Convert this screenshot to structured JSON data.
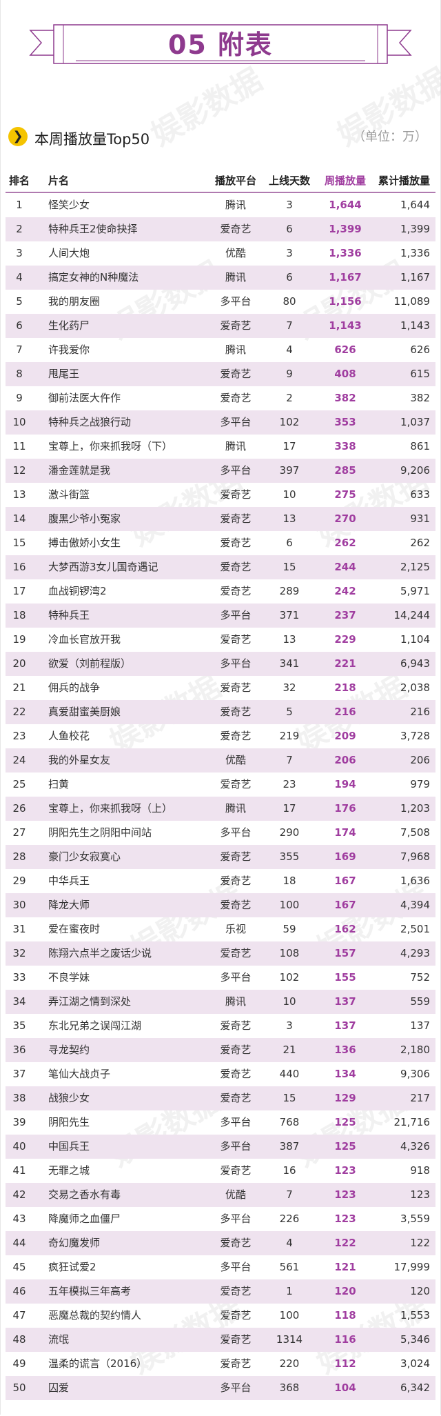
{
  "banner": {
    "title": "05 附表"
  },
  "section": {
    "title": "本周播放量Top50",
    "unit": "（单位：万）",
    "bullet_icon": "chevron-right-icon"
  },
  "watermark": {
    "text": "娱影数据"
  },
  "table": {
    "headers": {
      "rank": "排名",
      "name": "片名",
      "platform": "播放平台",
      "days": "上线天数",
      "weekly": "周播放量",
      "total": "累计播放量"
    },
    "rows": [
      {
        "rank": "1",
        "name": "怪笑少女",
        "platform": "腾讯",
        "days": "3",
        "weekly": "1,644",
        "total": "1,644"
      },
      {
        "rank": "2",
        "name": "特种兵王2使命抉择",
        "platform": "爱奇艺",
        "days": "6",
        "weekly": "1,399",
        "total": "1,399"
      },
      {
        "rank": "3",
        "name": "人间大炮",
        "platform": "优酷",
        "days": "3",
        "weekly": "1,336",
        "total": "1,336"
      },
      {
        "rank": "4",
        "name": "搞定女神的N种魔法",
        "platform": "腾讯",
        "days": "6",
        "weekly": "1,167",
        "total": "1,167"
      },
      {
        "rank": "5",
        "name": "我的朋友圈",
        "platform": "多平台",
        "days": "80",
        "weekly": "1,156",
        "total": "11,089"
      },
      {
        "rank": "6",
        "name": "生化药尸",
        "platform": "爱奇艺",
        "days": "7",
        "weekly": "1,143",
        "total": "1,143"
      },
      {
        "rank": "7",
        "name": "许我爱你",
        "platform": "腾讯",
        "days": "4",
        "weekly": "626",
        "total": "626"
      },
      {
        "rank": "8",
        "name": "甩尾王",
        "platform": "爱奇艺",
        "days": "9",
        "weekly": "408",
        "total": "615"
      },
      {
        "rank": "9",
        "name": "御前法医大仵作",
        "platform": "爱奇艺",
        "days": "2",
        "weekly": "382",
        "total": "382"
      },
      {
        "rank": "10",
        "name": "特种兵之战狼行动",
        "platform": "多平台",
        "days": "102",
        "weekly": "353",
        "total": "1,037"
      },
      {
        "rank": "11",
        "name": "宝尊上，你来抓我呀（下）",
        "platform": "腾讯",
        "days": "17",
        "weekly": "338",
        "total": "861"
      },
      {
        "rank": "12",
        "name": "潘金莲就是我",
        "platform": "多平台",
        "days": "397",
        "weekly": "285",
        "total": "9,206"
      },
      {
        "rank": "13",
        "name": "激斗街篮",
        "platform": "爱奇艺",
        "days": "10",
        "weekly": "275",
        "total": "633"
      },
      {
        "rank": "14",
        "name": "腹黑少爷小冤家",
        "platform": "爱奇艺",
        "days": "13",
        "weekly": "270",
        "total": "931"
      },
      {
        "rank": "15",
        "name": "搏击傲娇小女生",
        "platform": "爱奇艺",
        "days": "6",
        "weekly": "262",
        "total": "262"
      },
      {
        "rank": "16",
        "name": "大梦西游3女儿国奇遇记",
        "platform": "爱奇艺",
        "days": "15",
        "weekly": "244",
        "total": "2,125"
      },
      {
        "rank": "17",
        "name": "血战铜锣湾2",
        "platform": "爱奇艺",
        "days": "289",
        "weekly": "242",
        "total": "5,971"
      },
      {
        "rank": "18",
        "name": "特种兵王",
        "platform": "多平台",
        "days": "371",
        "weekly": "237",
        "total": "14,244"
      },
      {
        "rank": "19",
        "name": "冷血长官放开我",
        "platform": "爱奇艺",
        "days": "13",
        "weekly": "229",
        "total": "1,104"
      },
      {
        "rank": "20",
        "name": "欲爱（刘前程版）",
        "platform": "多平台",
        "days": "341",
        "weekly": "221",
        "total": "6,943"
      },
      {
        "rank": "21",
        "name": "佣兵的战争",
        "platform": "爱奇艺",
        "days": "32",
        "weekly": "218",
        "total": "2,038"
      },
      {
        "rank": "22",
        "name": "真爱甜蜜美厨娘",
        "platform": "爱奇艺",
        "days": "5",
        "weekly": "216",
        "total": "216"
      },
      {
        "rank": "23",
        "name": "人鱼校花",
        "platform": "爱奇艺",
        "days": "219",
        "weekly": "209",
        "total": "3,728"
      },
      {
        "rank": "24",
        "name": "我的外星女友",
        "platform": "优酷",
        "days": "7",
        "weekly": "206",
        "total": "206"
      },
      {
        "rank": "25",
        "name": "扫黄",
        "platform": "爱奇艺",
        "days": "23",
        "weekly": "194",
        "total": "979"
      },
      {
        "rank": "26",
        "name": "宝尊上，你来抓我呀（上）",
        "platform": "腾讯",
        "days": "17",
        "weekly": "176",
        "total": "1,203"
      },
      {
        "rank": "27",
        "name": "阴阳先生之阴阳中间站",
        "platform": "多平台",
        "days": "290",
        "weekly": "174",
        "total": "7,508"
      },
      {
        "rank": "28",
        "name": "豪门少女寂寞心",
        "platform": "爱奇艺",
        "days": "355",
        "weekly": "169",
        "total": "7,968"
      },
      {
        "rank": "29",
        "name": "中华兵王",
        "platform": "爱奇艺",
        "days": "18",
        "weekly": "167",
        "total": "1,636"
      },
      {
        "rank": "30",
        "name": "降龙大师",
        "platform": "爱奇艺",
        "days": "100",
        "weekly": "167",
        "total": "4,394"
      },
      {
        "rank": "31",
        "name": "爱在蜜夜时",
        "platform": "乐视",
        "days": "59",
        "weekly": "162",
        "total": "2,501"
      },
      {
        "rank": "32",
        "name": "陈翔六点半之废话少说",
        "platform": "爱奇艺",
        "days": "108",
        "weekly": "157",
        "total": "4,293"
      },
      {
        "rank": "33",
        "name": "不良学妹",
        "platform": "多平台",
        "days": "102",
        "weekly": "155",
        "total": "752"
      },
      {
        "rank": "34",
        "name": "弄江湖之情到深处",
        "platform": "腾讯",
        "days": "10",
        "weekly": "137",
        "total": "559"
      },
      {
        "rank": "35",
        "name": "东北兄弟之误闯江湖",
        "platform": "爱奇艺",
        "days": "3",
        "weekly": "137",
        "total": "137"
      },
      {
        "rank": "36",
        "name": "寻龙契约",
        "platform": "爱奇艺",
        "days": "21",
        "weekly": "136",
        "total": "2,180"
      },
      {
        "rank": "37",
        "name": "笔仙大战贞子",
        "platform": "爱奇艺",
        "days": "440",
        "weekly": "134",
        "total": "9,306"
      },
      {
        "rank": "38",
        "name": "战狼少女",
        "platform": "爱奇艺",
        "days": "15",
        "weekly": "129",
        "total": "217"
      },
      {
        "rank": "39",
        "name": "阴阳先生",
        "platform": "多平台",
        "days": "768",
        "weekly": "125",
        "total": "21,716"
      },
      {
        "rank": "40",
        "name": "中国兵王",
        "platform": "多平台",
        "days": "387",
        "weekly": "125",
        "total": "4,326"
      },
      {
        "rank": "41",
        "name": "无罪之城",
        "platform": "爱奇艺",
        "days": "16",
        "weekly": "123",
        "total": "918"
      },
      {
        "rank": "42",
        "name": "交易之香水有毒",
        "platform": "优酷",
        "days": "7",
        "weekly": "123",
        "total": "123"
      },
      {
        "rank": "43",
        "name": "降魔师之血僵尸",
        "platform": "多平台",
        "days": "226",
        "weekly": "123",
        "total": "3,559"
      },
      {
        "rank": "44",
        "name": "奇幻魔发师",
        "platform": "爱奇艺",
        "days": "4",
        "weekly": "122",
        "total": "122"
      },
      {
        "rank": "45",
        "name": "疯狂试爱2",
        "platform": "多平台",
        "days": "561",
        "weekly": "121",
        "total": "17,999"
      },
      {
        "rank": "46",
        "name": "五年模拟三年高考",
        "platform": "爱奇艺",
        "days": "1",
        "weekly": "120",
        "total": "120"
      },
      {
        "rank": "47",
        "name": "恶魔总裁的契约情人",
        "platform": "爱奇艺",
        "days": "100",
        "weekly": "118",
        "total": "1,553"
      },
      {
        "rank": "48",
        "name": "流氓",
        "platform": "爱奇艺",
        "days": "1314",
        "weekly": "116",
        "total": "5,346"
      },
      {
        "rank": "49",
        "name": "温柔的谎言（2016）",
        "platform": "爱奇艺",
        "days": "220",
        "weekly": "112",
        "total": "3,024"
      },
      {
        "rank": "50",
        "name": "囚爱",
        "platform": "多平台",
        "days": "368",
        "weekly": "104",
        "total": "6,342"
      }
    ]
  }
}
